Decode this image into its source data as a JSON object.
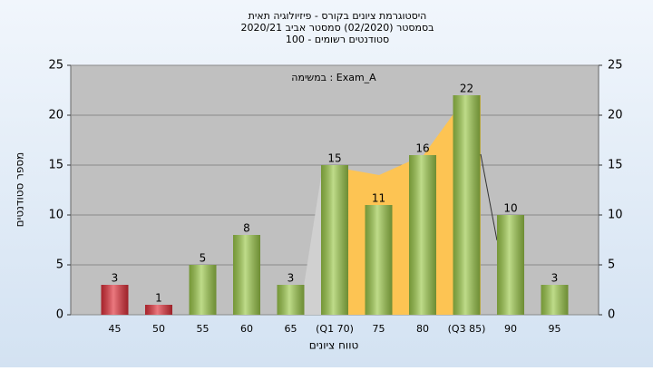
{
  "chart_data": {
    "type": "bar",
    "title": [
      "היסטוגרמת ציונים בקורס - פיזיולוגיה תאית",
      "בסמסטר (02/2020) סמסטר אביב 2020/21",
      "סטודנטים רשומים - 100"
    ],
    "annotation": "במשימה : Exam_A",
    "x_label": "טווח ציונים",
    "y_label": "מספר סטודנטים",
    "categories": [
      "45",
      "50",
      "55",
      "60",
      "65",
      "(Q1 70)",
      "75",
      "80",
      "(Q3 85)",
      "90",
      "95"
    ],
    "values": [
      3,
      1,
      5,
      8,
      3,
      15,
      11,
      16,
      22,
      10,
      3
    ],
    "colors": [
      "#e0303a",
      "#e0303a",
      "#9cc94a",
      "#9cc94a",
      "#9cc94a",
      "#9cc94a",
      "#9cc94a",
      "#9cc94a",
      "#9cc94a",
      "#9cc94a",
      "#9cc94a"
    ],
    "ylim": [
      0,
      25
    ],
    "yticks": [
      0,
      5,
      10,
      15,
      20,
      25
    ],
    "y2lim": [
      0,
      25
    ],
    "y2ticks": [
      0,
      5,
      10,
      15,
      20,
      25
    ],
    "grid": true
  }
}
